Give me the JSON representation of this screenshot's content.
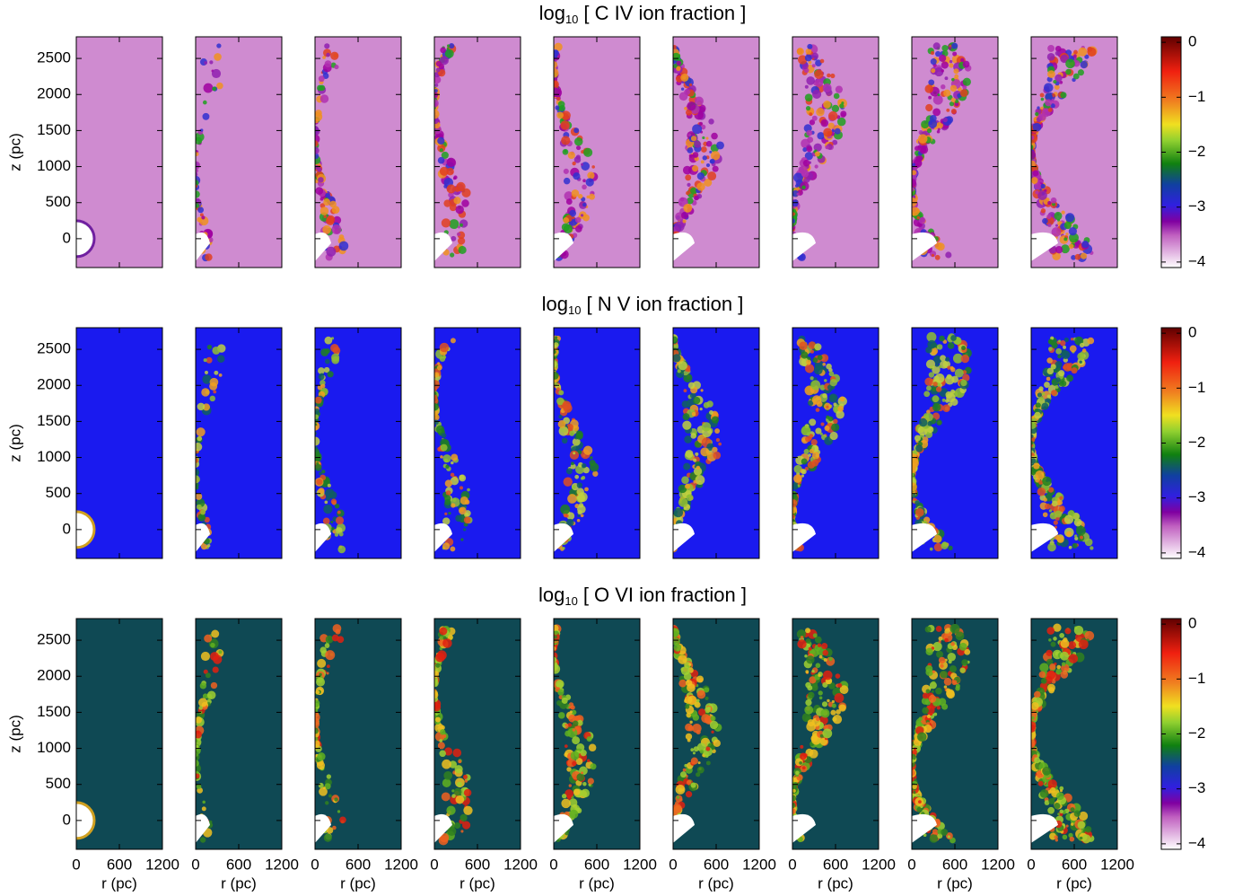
{
  "chart_data": [
    {
      "type": "image-grid",
      "title": {
        "prefix": "log",
        "subscript": "10",
        "text": "[ C IV ion fraction ]"
      },
      "ylabel": "z (pc)",
      "ylim": [
        -400,
        2800
      ],
      "yticks": [
        0,
        500,
        1000,
        1500,
        2000,
        2500
      ],
      "xlim": [
        0,
        1200
      ],
      "xticks": [
        0,
        600,
        1200
      ],
      "colorbar": {
        "lim": [
          -4.1,
          0.1
        ],
        "ticks": [
          0,
          {
            "value": -1,
            "label": "−1"
          },
          {
            "value": -2,
            "label": "−2"
          },
          {
            "value": -3,
            "label": "−3"
          },
          {
            "value": -4,
            "label": "−4"
          }
        ]
      }
    },
    {
      "type": "image-grid",
      "title": {
        "prefix": "log",
        "subscript": "10",
        "text": "[ N V ion fraction ]"
      },
      "ylabel": "z (pc)",
      "ylim": [
        -400,
        2800
      ],
      "yticks": [
        0,
        500,
        1000,
        1500,
        2000,
        2500
      ],
      "xlim": [
        0,
        1200
      ],
      "xticks": [
        0,
        600,
        1200
      ],
      "colorbar": {
        "lim": [
          -4.1,
          0.1
        ],
        "ticks": [
          0,
          {
            "value": -1,
            "label": "−1"
          },
          {
            "value": -2,
            "label": "−2"
          },
          {
            "value": -3,
            "label": "−3"
          },
          {
            "value": -4,
            "label": "−4"
          }
        ]
      }
    },
    {
      "type": "image-grid",
      "title": {
        "prefix": "log",
        "subscript": "10",
        "text": "[ O VI ion fraction ]"
      },
      "ylabel": "z (pc)",
      "ylim": [
        -400,
        2800
      ],
      "yticks": [
        0,
        500,
        1000,
        1500,
        2000,
        2500
      ],
      "xlabel": "r (pc)",
      "xlim": [
        0,
        1200
      ],
      "xticks": [
        0,
        600,
        1200
      ],
      "colorbar": {
        "lim": [
          -4.1,
          0.1
        ],
        "ticks": [
          0,
          {
            "value": -1,
            "label": "−1"
          },
          {
            "value": -2,
            "label": "−2"
          },
          {
            "value": -3,
            "label": "−3"
          },
          {
            "value": -4,
            "label": "−4"
          }
        ]
      }
    }
  ]
}
